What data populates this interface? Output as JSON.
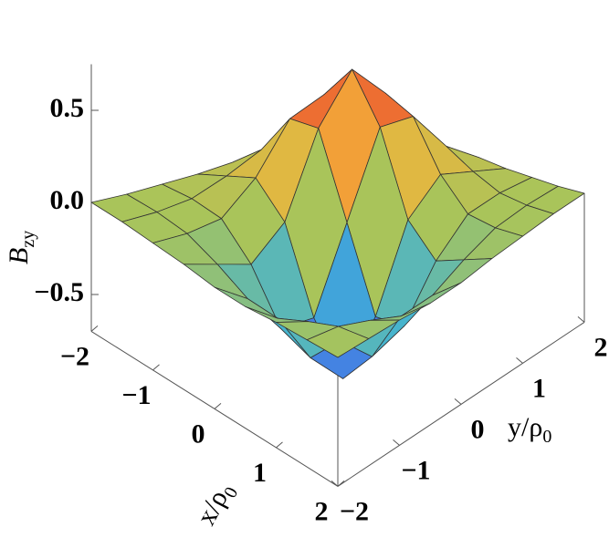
{
  "chart_data": {
    "type": "surface",
    "zlabel": {
      "main": "B",
      "sub": "zy"
    },
    "xlabel": {
      "main": "x/ρ",
      "sub": "0"
    },
    "ylabel": {
      "main": "y/ρ",
      "sub": "0"
    },
    "x": [
      -2,
      -1.5,
      -1,
      -0.5,
      0,
      0.5,
      1,
      1.5,
      2
    ],
    "y": [
      -2,
      -1.5,
      -1,
      -0.5,
      0,
      0.5,
      1,
      1.5,
      2
    ],
    "z": [
      [
        0,
        0,
        0.01,
        0.02,
        0.04,
        0.04,
        0.02,
        0.01,
        0
      ],
      [
        0,
        0,
        0.02,
        0.09,
        0.18,
        0.19,
        0.11,
        0.04,
        0.01
      ],
      [
        -0.01,
        -0.02,
        0,
        0.16,
        0.42,
        0.49,
        0.31,
        0.11,
        0.02
      ],
      [
        -0.02,
        -0.09,
        -0.16,
        0,
        0.44,
        0.69,
        0.49,
        0.19,
        0.04
      ],
      [
        -0.04,
        -0.18,
        -0.42,
        -0.44,
        0,
        0.44,
        0.42,
        0.18,
        0.04
      ],
      [
        -0.04,
        -0.19,
        -0.49,
        -0.69,
        -0.44,
        0,
        0.16,
        0.09,
        0.02
      ],
      [
        -0.02,
        -0.11,
        -0.31,
        -0.49,
        -0.42,
        -0.16,
        0,
        0.02,
        0.01
      ],
      [
        -0.01,
        -0.04,
        -0.11,
        -0.19,
        -0.18,
        -0.09,
        -0.02,
        0,
        0
      ],
      [
        0,
        -0.01,
        -0.02,
        -0.04,
        -0.04,
        -0.02,
        -0.01,
        0,
        0
      ]
    ],
    "xlim": [
      -2,
      2
    ],
    "ylim": [
      -2,
      2
    ],
    "zlim": [
      -0.7,
      0.75
    ],
    "xticks": [
      {
        "value": -2,
        "label": "−2"
      },
      {
        "value": -1,
        "label": "−1"
      },
      0,
      1,
      2
    ],
    "yticks": [
      {
        "value": -2,
        "label": "−2"
      },
      {
        "value": -1,
        "label": "−1"
      },
      0,
      1,
      2
    ],
    "zticks": [
      {
        "value": -0.5,
        "label": "−0.5"
      },
      {
        "value": 0,
        "label": "0.0"
      },
      0.5
    ],
    "colors": [
      "#4a45f2",
      "#3fb3d6",
      "#a9c45a",
      "#f4b43a",
      "#e5222a"
    ],
    "mesh_color": "#333333"
  }
}
